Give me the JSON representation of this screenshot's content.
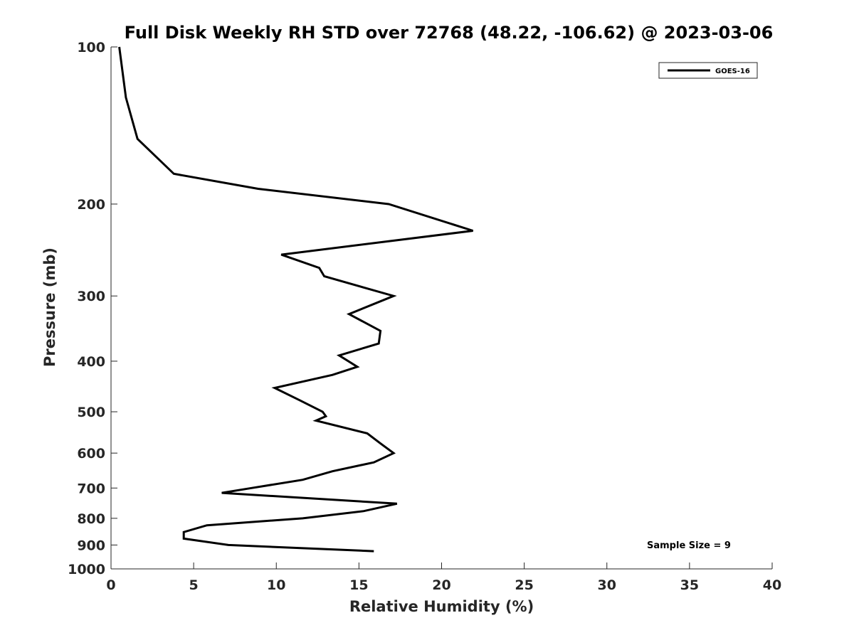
{
  "chart_data": {
    "type": "line",
    "title": "Full Disk Weekly RH STD over 72768 (48.22, -106.62) @ 2023-03-06",
    "xlabel": "Relative Humidity (%)",
    "ylabel": "Pressure (mb)",
    "xlim": [
      0,
      40
    ],
    "ylim": [
      100,
      1000
    ],
    "y_scale": "log",
    "y_reversed": true,
    "x_ticks": [
      0,
      5,
      10,
      15,
      20,
      25,
      30,
      35,
      40
    ],
    "y_ticks": [
      100,
      200,
      300,
      400,
      500,
      600,
      700,
      800,
      900,
      1000
    ],
    "grid": false,
    "legend_position": "top-right",
    "annotation": "Sample Size = 9",
    "series": [
      {
        "name": "GOES-16",
        "color": "#000000",
        "points": [
          {
            "x": 0.5,
            "y": 100
          },
          {
            "x": 0.9,
            "y": 125
          },
          {
            "x": 1.6,
            "y": 150
          },
          {
            "x": 3.8,
            "y": 175
          },
          {
            "x": 8.9,
            "y": 187
          },
          {
            "x": 16.8,
            "y": 200
          },
          {
            "x": 21.9,
            "y": 225
          },
          {
            "x": 10.3,
            "y": 250
          },
          {
            "x": 12.6,
            "y": 265
          },
          {
            "x": 12.9,
            "y": 275
          },
          {
            "x": 17.1,
            "y": 300
          },
          {
            "x": 14.4,
            "y": 325
          },
          {
            "x": 16.3,
            "y": 350
          },
          {
            "x": 16.2,
            "y": 370
          },
          {
            "x": 13.8,
            "y": 390
          },
          {
            "x": 14.9,
            "y": 410
          },
          {
            "x": 13.4,
            "y": 425
          },
          {
            "x": 9.9,
            "y": 450
          },
          {
            "x": 11.4,
            "y": 475
          },
          {
            "x": 12.8,
            "y": 500
          },
          {
            "x": 13.0,
            "y": 510
          },
          {
            "x": 12.4,
            "y": 520
          },
          {
            "x": 15.5,
            "y": 550
          },
          {
            "x": 16.3,
            "y": 575
          },
          {
            "x": 17.1,
            "y": 600
          },
          {
            "x": 15.9,
            "y": 625
          },
          {
            "x": 13.4,
            "y": 650
          },
          {
            "x": 11.6,
            "y": 675
          },
          {
            "x": 8.5,
            "y": 700
          },
          {
            "x": 6.7,
            "y": 715
          },
          {
            "x": 17.3,
            "y": 750
          },
          {
            "x": 15.3,
            "y": 775
          },
          {
            "x": 11.6,
            "y": 800
          },
          {
            "x": 5.8,
            "y": 825
          },
          {
            "x": 4.4,
            "y": 850
          },
          {
            "x": 4.4,
            "y": 875
          },
          {
            "x": 7.1,
            "y": 900
          },
          {
            "x": 15.9,
            "y": 925
          }
        ]
      }
    ]
  }
}
